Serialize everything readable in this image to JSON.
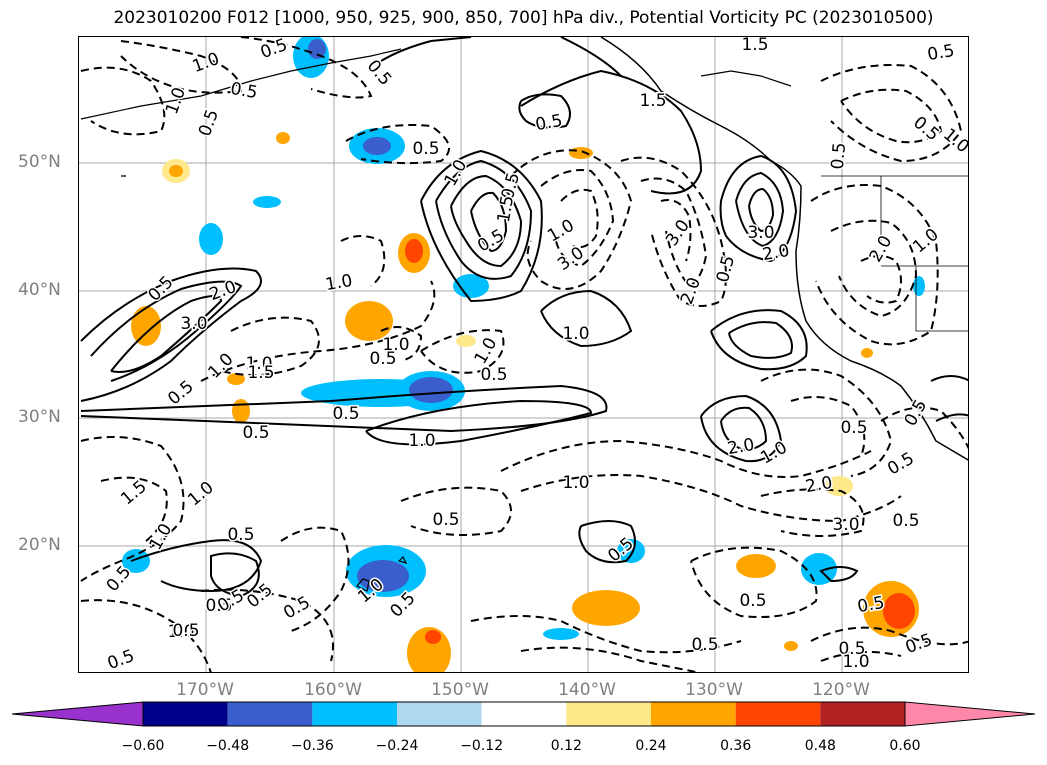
{
  "title": "2023010200 F012 [1000, 950, 925, 900, 850, 700] hPa div., Potential Vorticity PC (2023010500)",
  "lat_ticks": [
    "50°N",
    "40°N",
    "30°N",
    "20°N"
  ],
  "lon_ticks": [
    "170°W",
    "160°W",
    "150°W",
    "140°W",
    "130°W",
    "120°W"
  ],
  "colorbar": {
    "extend": "both",
    "levels": [
      "−0.60",
      "−0.48",
      "−0.36",
      "−0.24",
      "−0.12",
      "0.12",
      "0.24",
      "0.36",
      "0.48",
      "0.60"
    ],
    "colors": [
      "#9932cc",
      "#00008b",
      "#3a5fcd",
      "#00bfff",
      "#add8f0",
      "#ffffff",
      "#ffe88a",
      "#ffa500",
      "#ff4500",
      "#b22222",
      "#ff88aa"
    ]
  },
  "contour_labels": [
    {
      "text": "1.0"
    },
    {
      "text": "0.5"
    },
    {
      "text": "1.0"
    },
    {
      "text": "0.5"
    },
    {
      "text": "0.5"
    },
    {
      "text": "0.5"
    },
    {
      "text": "0.5"
    },
    {
      "text": "1.5"
    },
    {
      "text": "1.5"
    },
    {
      "text": "0.5"
    },
    {
      "text": "0.5"
    },
    {
      "text": "1.0"
    },
    {
      "text": "1.0"
    },
    {
      "text": "0.5"
    },
    {
      "text": "0.5"
    },
    {
      "text": "1.0"
    },
    {
      "text": "3.0"
    },
    {
      "text": "3.0"
    },
    {
      "text": "1.5"
    },
    {
      "text": "2.0"
    },
    {
      "text": "0.5"
    },
    {
      "text": "3.0"
    },
    {
      "text": "2.0"
    },
    {
      "text": "0.5"
    },
    {
      "text": "2.0"
    },
    {
      "text": "1.0"
    },
    {
      "text": "0.5"
    },
    {
      "text": "3.0"
    },
    {
      "text": "2.0"
    },
    {
      "text": "0.5"
    },
    {
      "text": "1.0"
    },
    {
      "text": "1.0"
    },
    {
      "text": "0.5"
    },
    {
      "text": "1.0"
    },
    {
      "text": "0.5"
    },
    {
      "text": "1.0"
    },
    {
      "text": "1.0"
    },
    {
      "text": "1.5"
    },
    {
      "text": "1.0"
    },
    {
      "text": "0.5"
    },
    {
      "text": "0.5"
    },
    {
      "text": "1.0"
    },
    {
      "text": "0.5"
    },
    {
      "text": "2.0"
    },
    {
      "text": "1.0"
    },
    {
      "text": "0.5"
    },
    {
      "text": "1.0"
    },
    {
      "text": "2.0"
    },
    {
      "text": "3.0"
    },
    {
      "text": "0.5"
    },
    {
      "text": "1.0"
    },
    {
      "text": "1.5"
    },
    {
      "text": "0.5"
    },
    {
      "text": "1.0"
    },
    {
      "text": "0.5"
    },
    {
      "text": "0.5"
    },
    {
      "text": "0.5"
    },
    {
      "text": "0.5"
    },
    {
      "text": "0.5"
    },
    {
      "text": "1.0"
    },
    {
      "text": "0.5"
    },
    {
      "text": "1.0"
    },
    {
      "text": "0.5"
    },
    {
      "text": "0.5"
    },
    {
      "text": "0.5"
    },
    {
      "text": "0.5"
    },
    {
      "text": "0.5"
    },
    {
      "text": "1.0"
    },
    {
      "text": "0.5"
    },
    {
      "text": "0.5"
    },
    {
      "text": "0.5"
    },
    {
      "text": "0.5"
    },
    {
      "text": "0.5"
    },
    {
      "text": "0.5"
    }
  ]
}
